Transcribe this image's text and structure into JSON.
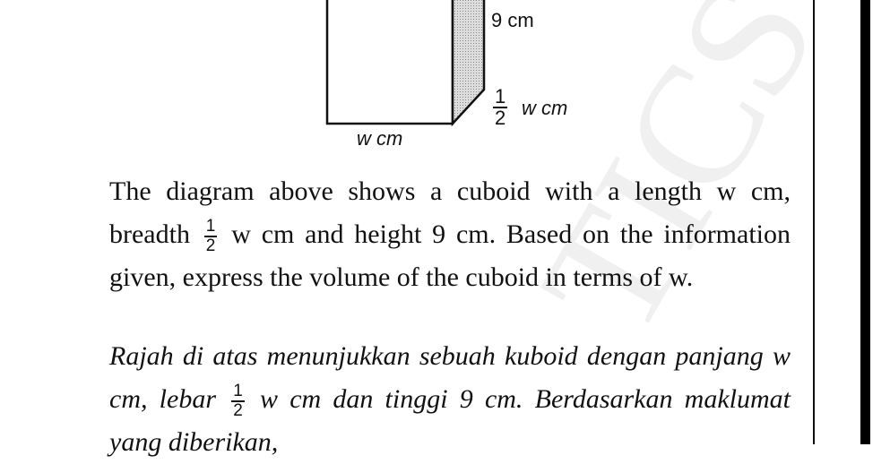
{
  "diagram": {
    "height_label": "9 cm",
    "breadth_numerator": "1",
    "breadth_denominator": "2",
    "breadth_unit": "w cm",
    "length_label": "w cm"
  },
  "watermark": "TICS",
  "english": {
    "before_fraction": "The diagram above shows a cuboid with a length w cm, breadth",
    "fraction_numerator": "1",
    "fraction_denominator": "2",
    "after_fraction": "w cm and height 9 cm. Based on the information given, express the volume of the cuboid in terms of w."
  },
  "malay": {
    "before_fraction": "Rajah di atas menunjukkan sebuah kuboid dengan panjang w cm, lebar",
    "fraction_numerator": "1",
    "fraction_denominator": "2",
    "after_fraction": "w cm dan tinggi 9 cm. Berdasarkan maklumat yang diberikan,"
  }
}
